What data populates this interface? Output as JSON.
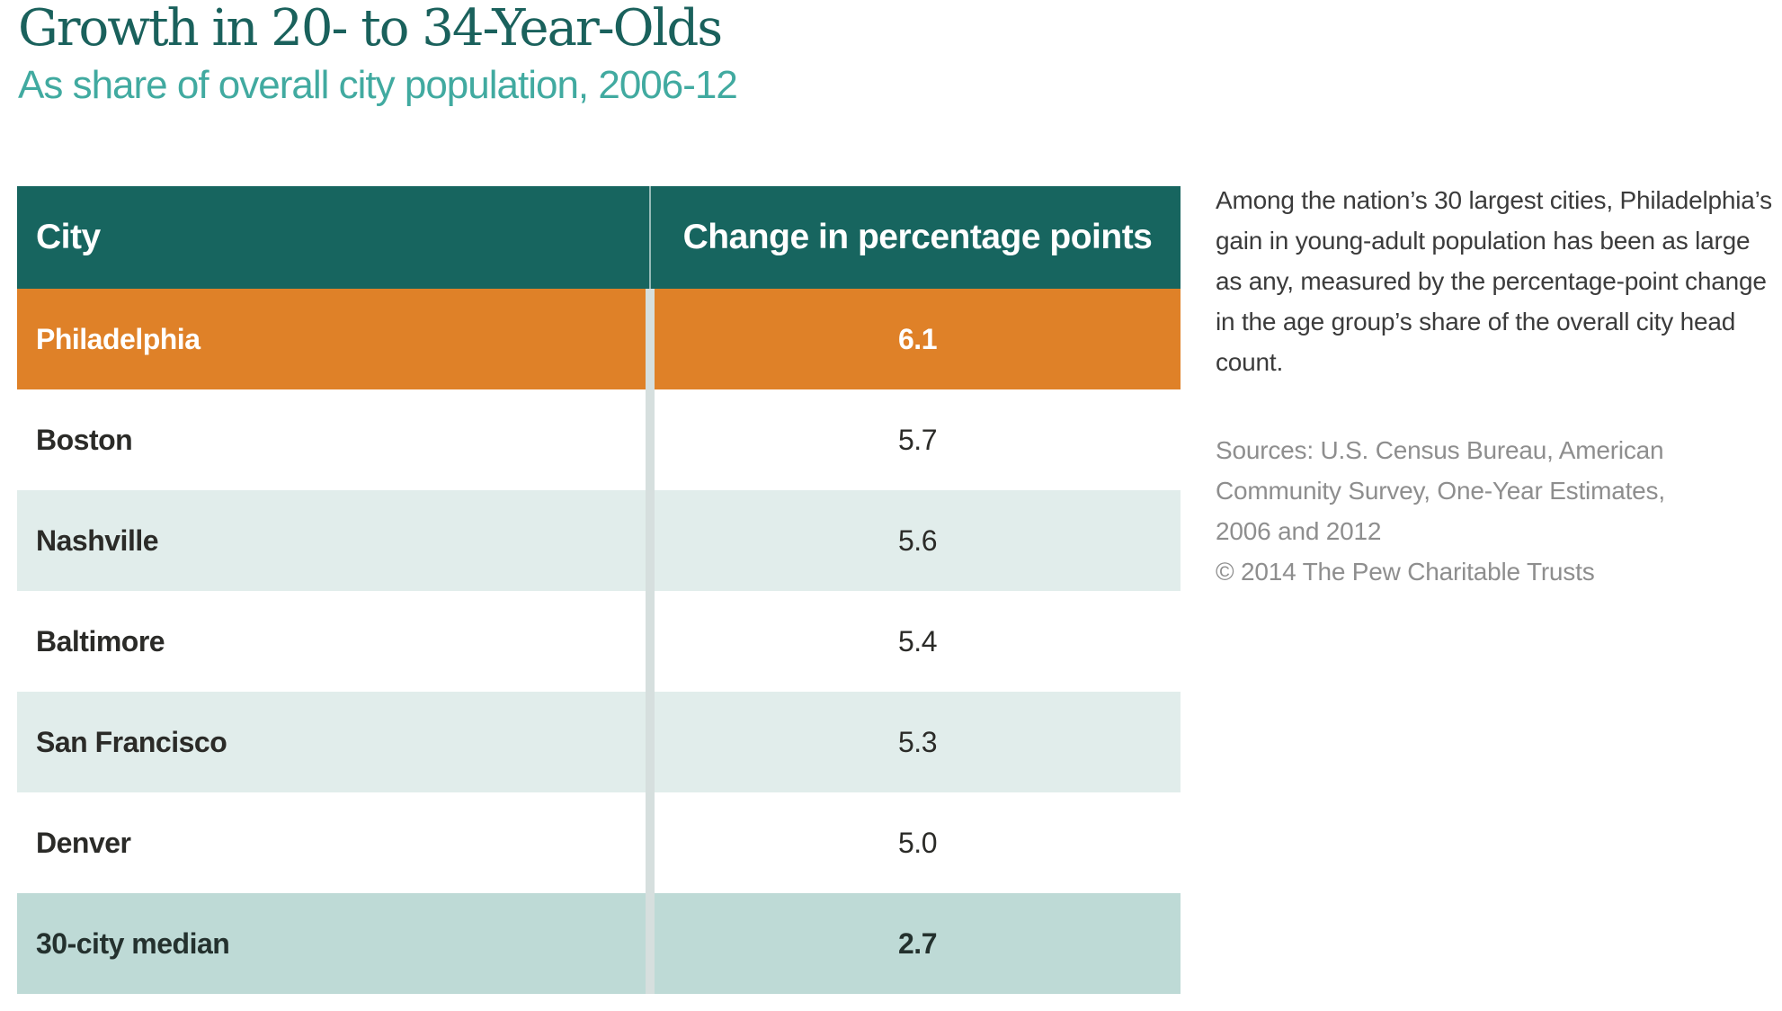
{
  "header": {
    "title": "Growth in 20- to 34-Year-Olds",
    "subtitle": "As share of overall city population, 2006-12"
  },
  "table": {
    "columns": [
      "City",
      "Change in percentage points"
    ],
    "rows": [
      {
        "city": "Philadelphia",
        "value": "6.1"
      },
      {
        "city": "Boston",
        "value": "5.7"
      },
      {
        "city": "Nashville",
        "value": "5.6"
      },
      {
        "city": "Baltimore",
        "value": "5.4"
      },
      {
        "city": "San Francisco",
        "value": "5.3"
      },
      {
        "city": "Denver",
        "value": "5.0"
      },
      {
        "city": "30-city median",
        "value": "2.7"
      }
    ]
  },
  "sidebar": {
    "description": "Among the nation’s 30 largest cities, Philadelphia’s gain in young-adult population has been as large as any, measured by the percentage-point change in the age group’s share of the overall city head count.",
    "sources": "Sources: U.S. Census Bureau, American Community Survey, One-Year Estimates, 2006 and 2012",
    "copyright": "© 2014 The Pew Charitable Trusts"
  },
  "colors": {
    "title": "#1a615c",
    "subtitle": "#41aaa0",
    "header_row": "#17655f",
    "highlight_row": "#df8128",
    "alt_row": "#e1edeb",
    "median_row": "#bedad6",
    "divider": "#d6dfde",
    "body_text": "#2b2b28",
    "source_text": "#8e8e8e"
  },
  "chart_data": {
    "type": "table",
    "title": "Growth in 20- to 34-Year-Olds",
    "subtitle": "As share of overall city population, 2006-12",
    "columns": [
      "City",
      "Change in percentage points"
    ],
    "categories": [
      "Philadelphia",
      "Boston",
      "Nashville",
      "Baltimore",
      "San Francisco",
      "Denver",
      "30-city median"
    ],
    "values": [
      6.1,
      5.7,
      5.6,
      5.4,
      5.3,
      5.0,
      2.7
    ],
    "highlighted_row": "Philadelphia",
    "notes": "Philadelphia row highlighted orange; 30-city median row shaded teal"
  }
}
